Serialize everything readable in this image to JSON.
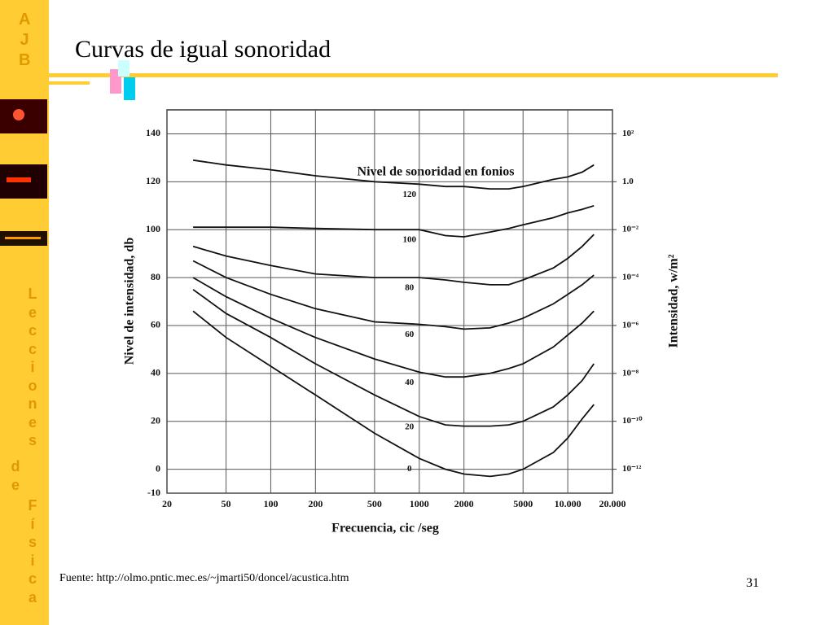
{
  "slide": {
    "logo": [
      "A",
      "J",
      "B"
    ],
    "sidebar": [
      "Lecciones",
      "de",
      "Física"
    ],
    "title": "Curvas de igual sonoridad",
    "source": "Fuente: http://olmo.pntic.mec.es/~jmarti50/doncel/acustica.htm",
    "page": "31"
  },
  "chart_data": {
    "type": "line",
    "annotation": "Nivel de sonoridad en fonios",
    "x_label": "Frecuencia, cic /seg",
    "y_label": "Nivel de intensidad, db",
    "y2_label": "Intensidad, w/m²",
    "x_log": true,
    "y2_log": true,
    "grid": true,
    "color": "#111111",
    "x": [
      30,
      50,
      100,
      200,
      500,
      1000,
      1500,
      2000,
      3000,
      4000,
      5000,
      8000,
      10000,
      12500,
      15000
    ],
    "series": [
      {
        "name": "120",
        "values": [
          129,
          127,
          125,
          122.5,
          120,
          119,
          118,
          118,
          117,
          117,
          118,
          121,
          122,
          124,
          127
        ]
      },
      {
        "name": "100",
        "values": [
          101,
          101,
          101,
          100.5,
          100,
          100,
          97.5,
          97,
          99,
          100.5,
          102,
          105,
          107,
          108.5,
          110
        ]
      },
      {
        "name": "80",
        "values": [
          93,
          89,
          85,
          81.5,
          80,
          80,
          79,
          78,
          77,
          77,
          79,
          84,
          88,
          93,
          98
        ]
      },
      {
        "name": "60",
        "values": [
          87,
          80,
          73,
          67,
          61.5,
          60.5,
          59.5,
          58.5,
          59,
          61,
          63,
          69,
          73,
          77,
          81
        ]
      },
      {
        "name": "40",
        "values": [
          80,
          72,
          63,
          55,
          46,
          40.5,
          38.5,
          38.5,
          40,
          42,
          44,
          51,
          56,
          61,
          66
        ]
      },
      {
        "name": "20",
        "values": [
          75,
          65,
          55,
          44,
          31,
          22,
          18.5,
          18,
          18,
          18.5,
          20,
          26,
          31,
          37,
          44
        ]
      },
      {
        "name": "0",
        "values": [
          66,
          55,
          43,
          31,
          15,
          4.5,
          0,
          -2,
          -3,
          -2,
          0,
          7,
          13,
          21,
          27
        ]
      }
    ],
    "xlim": [
      20,
      20000
    ],
    "xticks": [
      20,
      50,
      100,
      200,
      500,
      1000,
      2000,
      5000,
      {
        "value": 10000,
        "label": "10.000"
      },
      {
        "value": 20000,
        "label": "20.000"
      }
    ],
    "ylim": [
      -10,
      150
    ],
    "yticks": [
      -10,
      0,
      20,
      40,
      60,
      80,
      100,
      120,
      140
    ],
    "y2lim": [
      1e-13,
      1000
    ],
    "y2ticks": [
      {
        "value": 100,
        "label": "10²"
      },
      {
        "value": 1,
        "label": "1.0"
      },
      {
        "value": 0.01,
        "label": "10⁻²"
      },
      {
        "value": 0.0001,
        "label": "10⁻⁴"
      },
      {
        "value": 1e-06,
        "label": "10⁻⁶"
      },
      {
        "value": 1e-08,
        "label": "10⁻⁸"
      },
      {
        "value": 1e-10,
        "label": "10⁻¹⁰"
      },
      {
        "value": 1e-12,
        "label": "10⁻¹²"
      }
    ]
  }
}
